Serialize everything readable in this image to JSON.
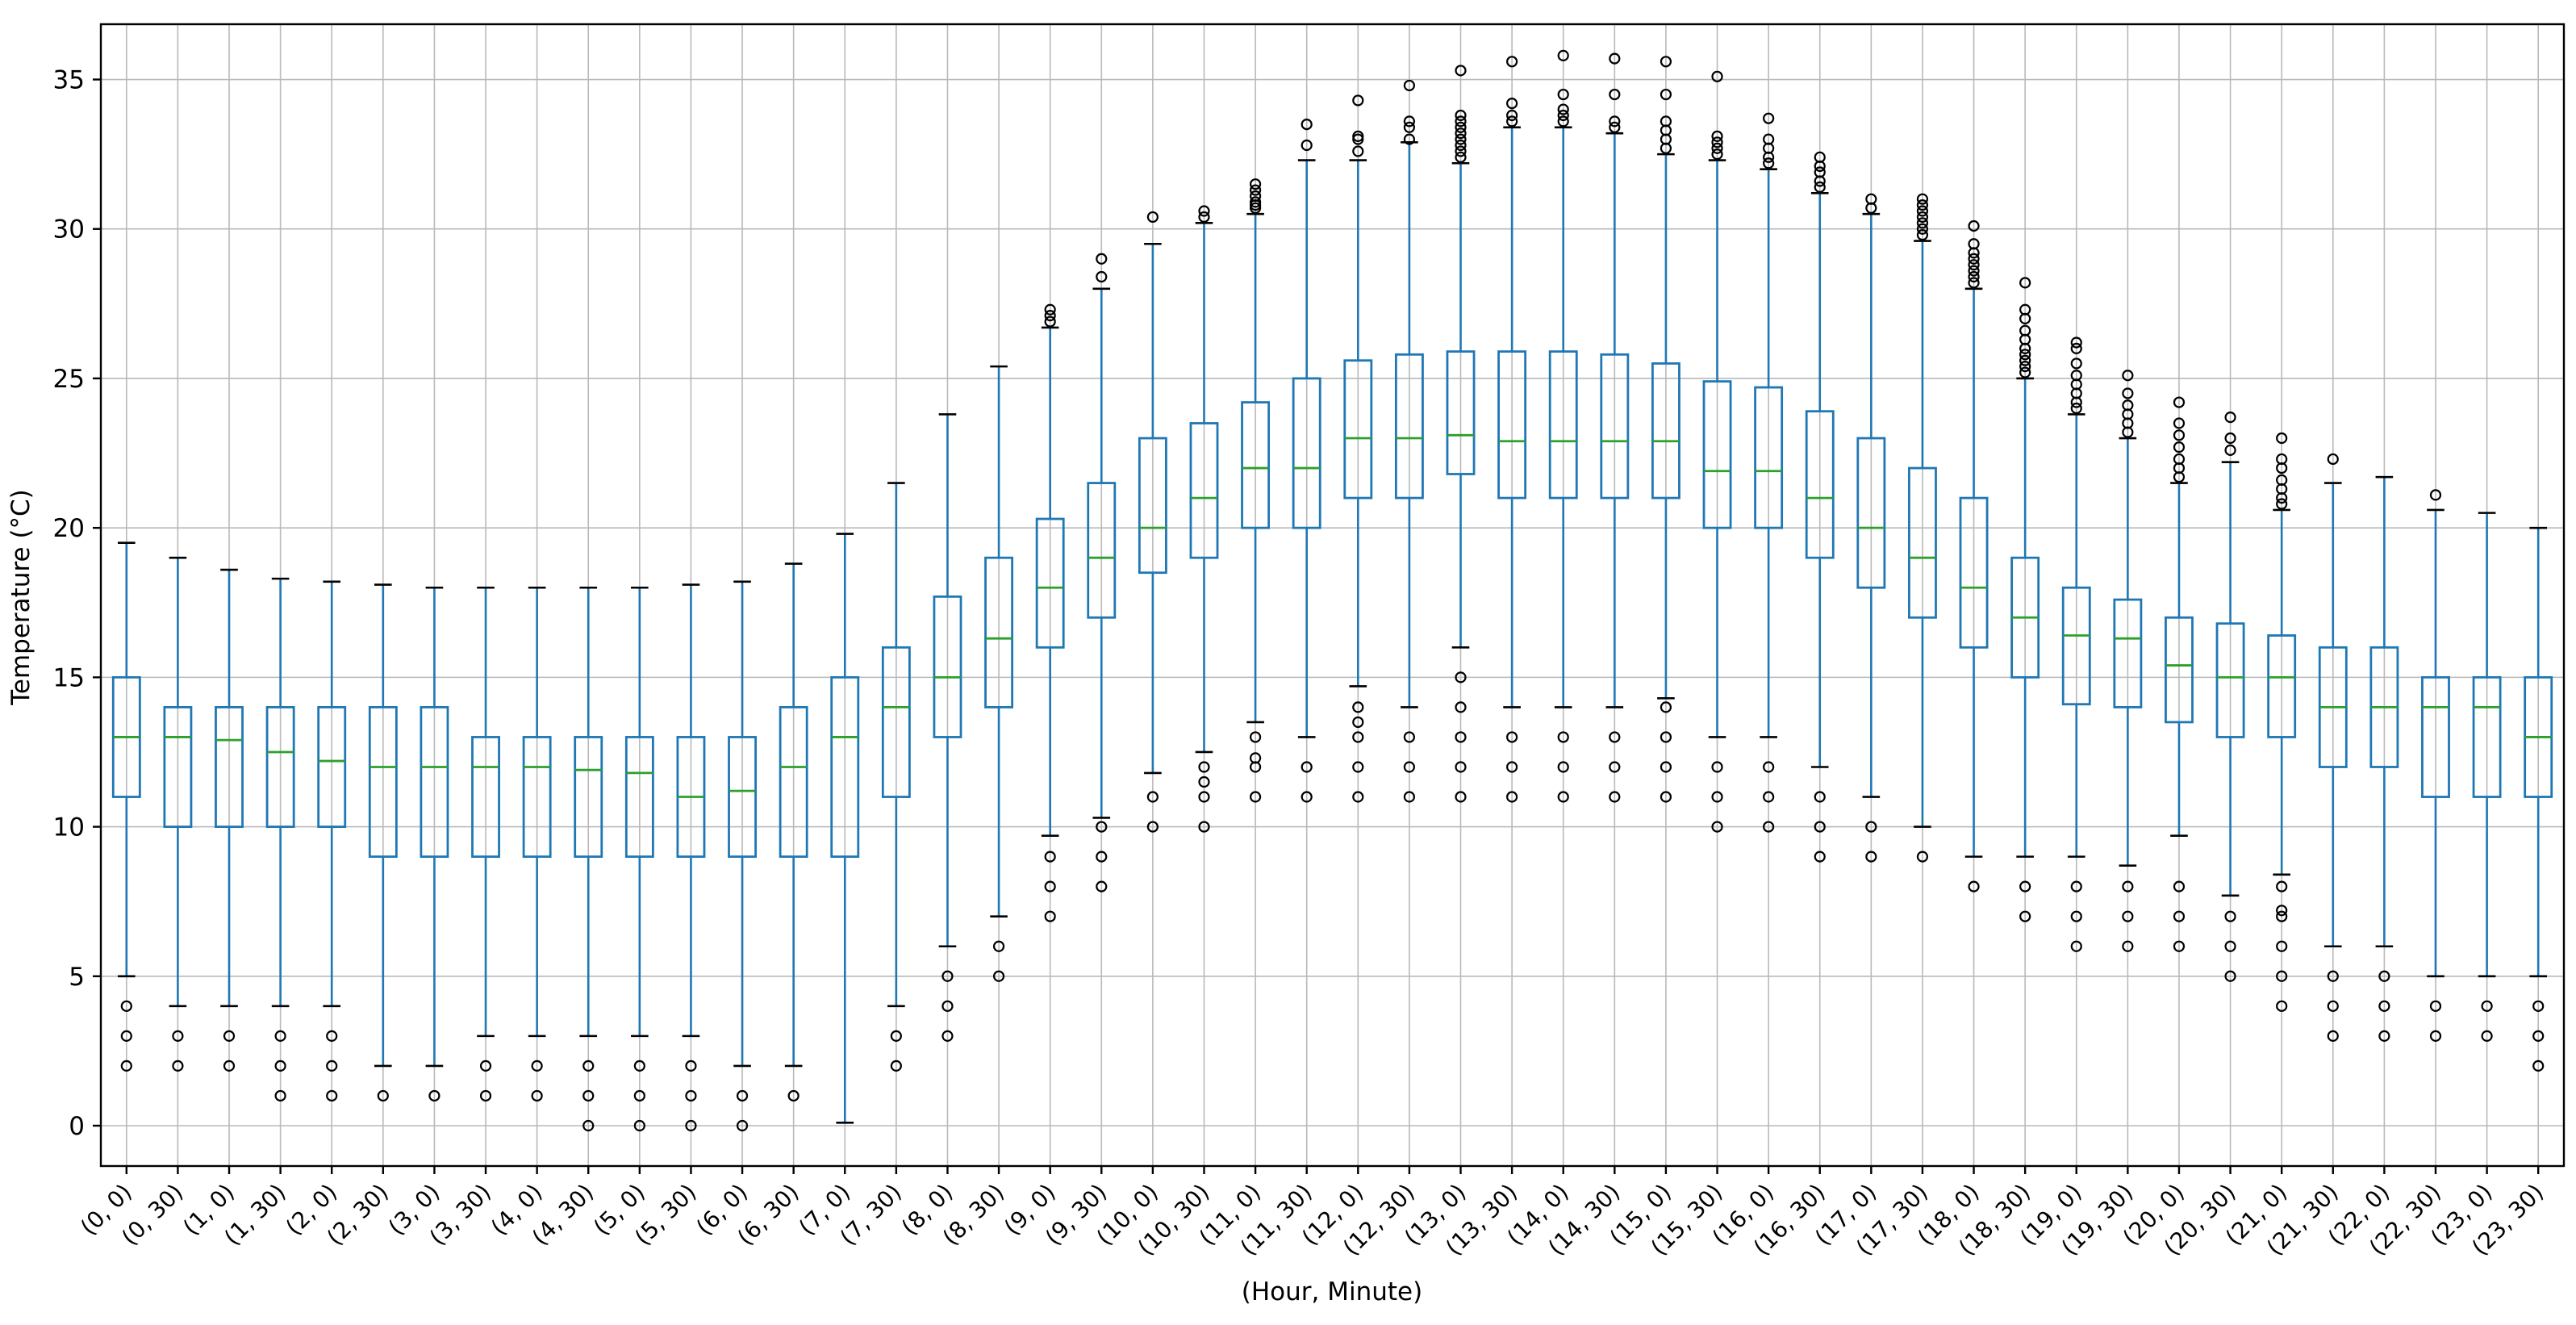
{
  "figure": {
    "background": "#ffffff"
  },
  "axes": {
    "xlabel": "(Hour, Minute)",
    "ylabel": "Temperature (°C)",
    "ytick_labels": [
      "0",
      "5",
      "10",
      "15",
      "20",
      "25",
      "30",
      "35"
    ],
    "grid": true
  },
  "colors": {
    "box": "#1f77b4",
    "whisker": "#1f77b4",
    "median": "#2ca02c",
    "cap": "#000000",
    "flier_edge": "#000000",
    "grid": "#b9b9b9",
    "spine": "#000000",
    "text": "#000000",
    "background": "#ffffff"
  },
  "chart_data": {
    "type": "box",
    "title": "",
    "xlabel": "(Hour, Minute)",
    "ylabel": "Temperature (°C)",
    "ylim": [
      -1.35,
      36.85
    ],
    "yticks": [
      0,
      5,
      10,
      15,
      20,
      25,
      30,
      35
    ],
    "grid": true,
    "legend_position": "none",
    "categories": [
      "(0, 0)",
      "(0, 30)",
      "(1, 0)",
      "(1, 30)",
      "(2, 0)",
      "(2, 30)",
      "(3, 0)",
      "(3, 30)",
      "(4, 0)",
      "(4, 30)",
      "(5, 0)",
      "(5, 30)",
      "(6, 0)",
      "(6, 30)",
      "(7, 0)",
      "(7, 30)",
      "(8, 0)",
      "(8, 30)",
      "(9, 0)",
      "(9, 30)",
      "(10, 0)",
      "(10, 30)",
      "(11, 0)",
      "(11, 30)",
      "(12, 0)",
      "(12, 30)",
      "(13, 0)",
      "(13, 30)",
      "(14, 0)",
      "(14, 30)",
      "(15, 0)",
      "(15, 30)",
      "(16, 0)",
      "(16, 30)",
      "(17, 0)",
      "(17, 30)",
      "(18, 0)",
      "(18, 30)",
      "(19, 0)",
      "(19, 30)",
      "(20, 0)",
      "(20, 30)",
      "(21, 0)",
      "(21, 30)",
      "(22, 0)",
      "(22, 30)",
      "(23, 0)",
      "(23, 30)"
    ],
    "boxes": [
      {
        "label": "(0, 0)",
        "whislo": 5,
        "q1": 11,
        "med": 13,
        "q3": 15,
        "whishi": 19.5,
        "fliers": [
          4,
          3,
          2
        ]
      },
      {
        "label": "(0, 30)",
        "whislo": 4,
        "q1": 10,
        "med": 13,
        "q3": 14,
        "whishi": 19,
        "fliers": [
          3,
          2
        ]
      },
      {
        "label": "(1, 0)",
        "whislo": 4,
        "q1": 10,
        "med": 12.9,
        "q3": 14,
        "whishi": 18.6,
        "fliers": [
          3,
          2
        ]
      },
      {
        "label": "(1, 30)",
        "whislo": 4,
        "q1": 10,
        "med": 12.5,
        "q3": 14,
        "whishi": 18.3,
        "fliers": [
          3,
          2,
          1
        ]
      },
      {
        "label": "(2, 0)",
        "whislo": 4,
        "q1": 10,
        "med": 12.2,
        "q3": 14,
        "whishi": 18.2,
        "fliers": [
          3,
          2,
          1
        ]
      },
      {
        "label": "(2, 30)",
        "whislo": 2,
        "q1": 9,
        "med": 12,
        "q3": 14,
        "whishi": 18.1,
        "fliers": [
          1
        ]
      },
      {
        "label": "(3, 0)",
        "whislo": 2,
        "q1": 9,
        "med": 12,
        "q3": 14,
        "whishi": 18,
        "fliers": [
          1
        ]
      },
      {
        "label": "(3, 30)",
        "whislo": 3,
        "q1": 9,
        "med": 12,
        "q3": 13,
        "whishi": 18,
        "fliers": [
          2,
          1
        ]
      },
      {
        "label": "(4, 0)",
        "whislo": 3,
        "q1": 9,
        "med": 12,
        "q3": 13,
        "whishi": 18,
        "fliers": [
          2,
          1
        ]
      },
      {
        "label": "(4, 30)",
        "whislo": 3,
        "q1": 9,
        "med": 11.9,
        "q3": 13,
        "whishi": 18,
        "fliers": [
          2,
          1,
          0
        ]
      },
      {
        "label": "(5, 0)",
        "whislo": 3,
        "q1": 9,
        "med": 11.8,
        "q3": 13,
        "whishi": 18,
        "fliers": [
          2,
          1,
          0
        ]
      },
      {
        "label": "(5, 30)",
        "whislo": 3,
        "q1": 9,
        "med": 11,
        "q3": 13,
        "whishi": 18.1,
        "fliers": [
          2,
          1,
          0
        ]
      },
      {
        "label": "(6, 0)",
        "whislo": 2,
        "q1": 9,
        "med": 11.2,
        "q3": 13,
        "whishi": 18.2,
        "fliers": [
          1,
          0
        ]
      },
      {
        "label": "(6, 30)",
        "whislo": 2,
        "q1": 9,
        "med": 12,
        "q3": 14,
        "whishi": 18.8,
        "fliers": [
          1
        ]
      },
      {
        "label": "(7, 0)",
        "whislo": 0.1,
        "q1": 9,
        "med": 13,
        "q3": 15,
        "whishi": 19.8,
        "fliers": []
      },
      {
        "label": "(7, 30)",
        "whislo": 4,
        "q1": 11,
        "med": 14,
        "q3": 16,
        "whishi": 21.5,
        "fliers": [
          3,
          2
        ]
      },
      {
        "label": "(8, 0)",
        "whislo": 6,
        "q1": 13,
        "med": 15,
        "q3": 17.7,
        "whishi": 23.8,
        "fliers": [
          5,
          4,
          3
        ]
      },
      {
        "label": "(8, 30)",
        "whislo": 7,
        "q1": 14,
        "med": 16.3,
        "q3": 19,
        "whishi": 25.4,
        "fliers": [
          6,
          5
        ]
      },
      {
        "label": "(9, 0)",
        "whislo": 9.7,
        "q1": 16,
        "med": 18,
        "q3": 20.3,
        "whishi": 26.7,
        "fliers": [
          9,
          8,
          7,
          26.9,
          27.1,
          27.3
        ]
      },
      {
        "label": "(9, 30)",
        "whislo": 10.3,
        "q1": 17,
        "med": 19,
        "q3": 21.5,
        "whishi": 28,
        "fliers": [
          10,
          9,
          8,
          28.4,
          29
        ]
      },
      {
        "label": "(10, 0)",
        "whislo": 11.8,
        "q1": 18.5,
        "med": 20,
        "q3": 23,
        "whishi": 29.5,
        "fliers": [
          11,
          10,
          30.4
        ]
      },
      {
        "label": "(10, 30)",
        "whislo": 12.5,
        "q1": 19,
        "med": 21,
        "q3": 23.5,
        "whishi": 30.2,
        "fliers": [
          12,
          11.5,
          11,
          10,
          30.4,
          30.6
        ]
      },
      {
        "label": "(11, 0)",
        "whislo": 13.5,
        "q1": 20,
        "med": 22,
        "q3": 24.2,
        "whishi": 30.5,
        "fliers": [
          13,
          12.3,
          12,
          11,
          30.7,
          30.8,
          30.9,
          31.1,
          31.3,
          31.5
        ]
      },
      {
        "label": "(11, 30)",
        "whislo": 13,
        "q1": 20,
        "med": 22,
        "q3": 25,
        "whishi": 32.3,
        "fliers": [
          12,
          11,
          32.8,
          33.5
        ]
      },
      {
        "label": "(12, 0)",
        "whislo": 14.7,
        "q1": 21,
        "med": 23,
        "q3": 25.6,
        "whishi": 32.3,
        "fliers": [
          14,
          13.5,
          13,
          12,
          11,
          32.6,
          33,
          33.1,
          34.3
        ]
      },
      {
        "label": "(12, 30)",
        "whislo": 14,
        "q1": 21,
        "med": 23,
        "q3": 25.8,
        "whishi": 32.9,
        "fliers": [
          13,
          12,
          11,
          33,
          33.4,
          33.6,
          34.8
        ]
      },
      {
        "label": "(13, 0)",
        "whislo": 16,
        "q1": 21.8,
        "med": 23.1,
        "q3": 25.9,
        "whishi": 32.2,
        "fliers": [
          15,
          14,
          13,
          12,
          11,
          32.4,
          32.6,
          32.8,
          33,
          33.2,
          33.4,
          33.6,
          33.8,
          35.3
        ]
      },
      {
        "label": "(13, 30)",
        "whislo": 14,
        "q1": 21,
        "med": 22.9,
        "q3": 25.9,
        "whishi": 33.4,
        "fliers": [
          13,
          12,
          11,
          33.6,
          33.8,
          34.2,
          35.6
        ]
      },
      {
        "label": "(14, 0)",
        "whislo": 14,
        "q1": 21,
        "med": 22.9,
        "q3": 25.9,
        "whishi": 33.4,
        "fliers": [
          13,
          12,
          11,
          33.6,
          33.8,
          34,
          34.5,
          35.8
        ]
      },
      {
        "label": "(14, 30)",
        "whislo": 14,
        "q1": 21,
        "med": 22.9,
        "q3": 25.8,
        "whishi": 33.2,
        "fliers": [
          13,
          12,
          11,
          33.4,
          33.6,
          34.5,
          35.7
        ]
      },
      {
        "label": "(15, 0)",
        "whislo": 14.3,
        "q1": 21,
        "med": 22.9,
        "q3": 25.5,
        "whishi": 32.5,
        "fliers": [
          14,
          13,
          12,
          11,
          32.7,
          33,
          33.3,
          33.6,
          34.5,
          35.6
        ]
      },
      {
        "label": "(15, 30)",
        "whislo": 13,
        "q1": 20,
        "med": 21.9,
        "q3": 24.9,
        "whishi": 32.3,
        "fliers": [
          12,
          11,
          10,
          32.5,
          32.7,
          32.9,
          33.1,
          35.1
        ]
      },
      {
        "label": "(16, 0)",
        "whislo": 13,
        "q1": 20,
        "med": 21.9,
        "q3": 24.7,
        "whishi": 32,
        "fliers": [
          12,
          11,
          10,
          32.2,
          32.4,
          32.7,
          33,
          33.7
        ]
      },
      {
        "label": "(16, 30)",
        "whislo": 12,
        "q1": 19,
        "med": 21,
        "q3": 23.9,
        "whishi": 31.2,
        "fliers": [
          11,
          10,
          9,
          31.4,
          31.6,
          31.9,
          32.1,
          32.4
        ]
      },
      {
        "label": "(17, 0)",
        "whislo": 11,
        "q1": 18,
        "med": 20,
        "q3": 23,
        "whishi": 30.5,
        "fliers": [
          10,
          9,
          30.7,
          31
        ]
      },
      {
        "label": "(17, 30)",
        "whislo": 10,
        "q1": 17,
        "med": 19,
        "q3": 22,
        "whishi": 29.6,
        "fliers": [
          9,
          29.8,
          30,
          30.2,
          30.4,
          30.6,
          30.8,
          31
        ]
      },
      {
        "label": "(18, 0)",
        "whislo": 9,
        "q1": 16,
        "med": 18,
        "q3": 21,
        "whishi": 28,
        "fliers": [
          8,
          28.2,
          28.4,
          28.6,
          28.8,
          29,
          29.2,
          29.5,
          30.1
        ]
      },
      {
        "label": "(18, 30)",
        "whislo": 9,
        "q1": 15,
        "med": 17,
        "q3": 19,
        "whishi": 25,
        "fliers": [
          8,
          7,
          25.2,
          25.4,
          25.6,
          25.8,
          26,
          26.3,
          26.6,
          27,
          27.3,
          28.2
        ]
      },
      {
        "label": "(19, 0)",
        "whislo": 9,
        "q1": 14.1,
        "med": 16.4,
        "q3": 18,
        "whishi": 23.8,
        "fliers": [
          8,
          7,
          6,
          24,
          24.2,
          24.5,
          24.8,
          25.1,
          25.5,
          26,
          26.2
        ]
      },
      {
        "label": "(19, 30)",
        "whislo": 8.7,
        "q1": 14,
        "med": 16.3,
        "q3": 17.6,
        "whishi": 23,
        "fliers": [
          8,
          7,
          6,
          23.2,
          23.5,
          23.8,
          24.1,
          24.5,
          25.1
        ]
      },
      {
        "label": "(20, 0)",
        "whislo": 9.7,
        "q1": 13.5,
        "med": 15.4,
        "q3": 17,
        "whishi": 21.5,
        "fliers": [
          8,
          7,
          6,
          21.7,
          22,
          22.3,
          22.7,
          23.1,
          23.5,
          24.2
        ]
      },
      {
        "label": "(20, 30)",
        "whislo": 7.7,
        "q1": 13,
        "med": 15,
        "q3": 16.8,
        "whishi": 22.2,
        "fliers": [
          7,
          6,
          5,
          22.6,
          23,
          23.7
        ]
      },
      {
        "label": "(21, 0)",
        "whislo": 8.4,
        "q1": 13,
        "med": 15,
        "q3": 16.4,
        "whishi": 20.6,
        "fliers": [
          8,
          7.2,
          7,
          6,
          5,
          4,
          20.8,
          21,
          21.3,
          21.6,
          22,
          22.3,
          23
        ]
      },
      {
        "label": "(21, 30)",
        "whislo": 6,
        "q1": 12,
        "med": 14,
        "q3": 16,
        "whishi": 21.5,
        "fliers": [
          5,
          4,
          3,
          22.3
        ]
      },
      {
        "label": "(22, 0)",
        "whislo": 6,
        "q1": 12,
        "med": 14,
        "q3": 16,
        "whishi": 21.7,
        "fliers": [
          5,
          4,
          3
        ]
      },
      {
        "label": "(22, 30)",
        "whislo": 5,
        "q1": 11,
        "med": 14,
        "q3": 15,
        "whishi": 20.6,
        "fliers": [
          4,
          3,
          21.1
        ]
      },
      {
        "label": "(23, 0)",
        "whislo": 5,
        "q1": 11,
        "med": 14,
        "q3": 15,
        "whishi": 20.5,
        "fliers": [
          4,
          3
        ]
      },
      {
        "label": "(23, 30)",
        "whislo": 5,
        "q1": 11,
        "med": 13,
        "q3": 15,
        "whishi": 20,
        "fliers": [
          4,
          3,
          2
        ]
      }
    ]
  }
}
